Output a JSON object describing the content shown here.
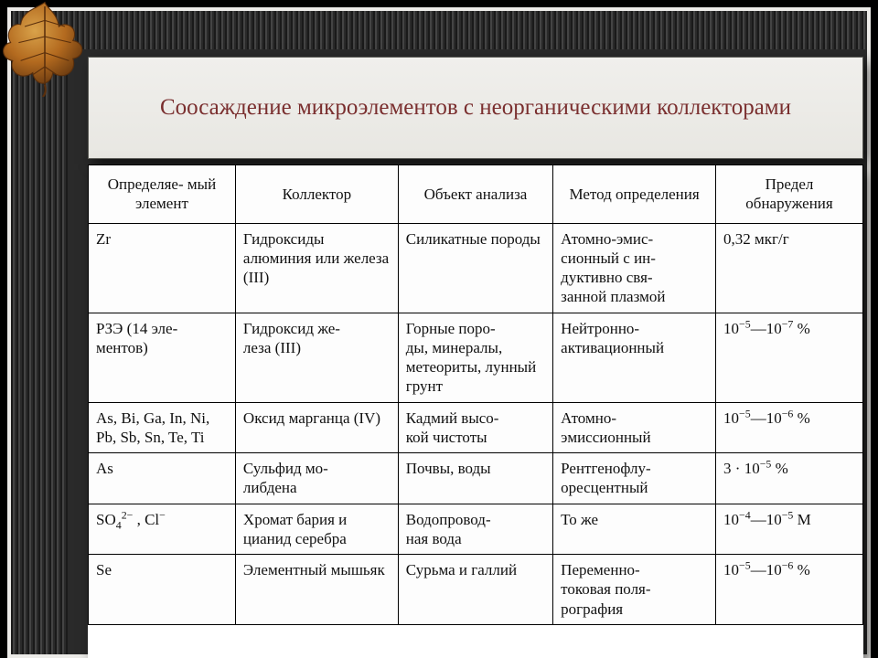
{
  "title": "Соосаждение микроэлементов с неорганическими коллекторами",
  "colors": {
    "title_text": "#7a2f2f",
    "panel_bg": "#efeee9",
    "table_bg": "#fdfdfd",
    "border": "#000000",
    "frame": "#ecebe8",
    "page_bg": "#000000",
    "leaf_fill": "#b36a1f",
    "leaf_dark": "#6a3a10",
    "leaf_light": "#d9a24a"
  },
  "typography": {
    "title_fontsize": 25,
    "cell_fontsize": 17,
    "font_family": "Times New Roman"
  },
  "table": {
    "col_widths_pct": [
      19,
      21,
      20,
      21,
      19
    ],
    "columns": [
      "Определяе-\nмый элемент",
      "Коллектор",
      "Объект\nанализа",
      "Метод\nопределения",
      "Предел\nобнаружения"
    ],
    "rows": [
      {
        "element": "Zr",
        "collector": "Гидроксиды алюминия или железа (III)",
        "object": "Силикатные породы",
        "method": "Атомно-эмис-\nсионный с ин-\nдуктивно свя-\nзанной плазмой",
        "limit": "0,32 мкг/г"
      },
      {
        "element": "РЗЭ (14 эле-\nментов)",
        "collector": "Гидроксид же-\nлеза (III)",
        "object": "Горные поро-\nды, минералы, метеориты, лунный грунт",
        "method": "Нейтронно-\nактивационный",
        "limit": "10⁻⁵—10⁻⁷ %"
      },
      {
        "element": "As, Bi, Ga, In, Ni, Pb, Sb, Sn, Te, Ti",
        "collector": "Оксид марганца (IV)",
        "object": "Кадмий высо-\nкой чистоты",
        "method": "Атомно-\nэмиссионный",
        "limit": "10⁻⁵—10⁻⁶ %"
      },
      {
        "element": "As",
        "collector": "Сульфид мо-\nлибдена",
        "object": "Почвы, воды",
        "method": "Рентгенофлу-\nоресцентный",
        "limit": "3 · 10⁻⁵ %"
      },
      {
        "element_html": "SO<sub>4</sub><sup>2−</sup> , Cl<sup>−</sup>",
        "collector": "Хромат бария и цианид серебра",
        "object": "Водопровод-\nная вода",
        "method": "То же",
        "limit": "10⁻⁴—10⁻⁵ М"
      },
      {
        "element": "Se",
        "collector": "Элементный мышьяк",
        "object": "Сурьма и галлий",
        "method": "Переменно-\nтоковая поля-\nрография",
        "limit": "10⁻⁵—10⁻⁶ %"
      }
    ]
  }
}
